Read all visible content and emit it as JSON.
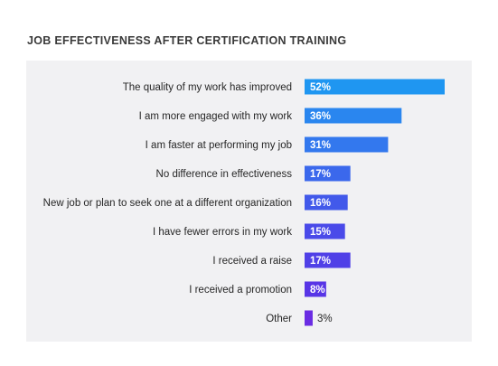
{
  "chart_data": {
    "type": "bar",
    "orientation": "horizontal",
    "title": "JOB EFFECTIVENESS AFTER CERTIFICATION TRAINING",
    "categories": [
      "The quality of my work has improved",
      "I am more engaged with my work",
      "I am faster at performing my job",
      "No difference in effectiveness",
      "New job or plan to seek one at a different organization",
      "I have fewer errors in my work",
      "I received a raise",
      "I received a promotion",
      "Other"
    ],
    "values": [
      52,
      36,
      31,
      17,
      16,
      15,
      17,
      8,
      3
    ],
    "value_labels": [
      "52%",
      "36%",
      "31%",
      "17%",
      "16%",
      "15%",
      "17%",
      "8%",
      "3%"
    ],
    "bar_colors": [
      "#1f96f1",
      "#2a86ef",
      "#3378ee",
      "#3b68ec",
      "#4259ea",
      "#4a4ae9",
      "#5040e7",
      "#5835e6",
      "#6a2ce3"
    ],
    "xlim": [
      0,
      52
    ],
    "grid": false,
    "legend": "none"
  }
}
